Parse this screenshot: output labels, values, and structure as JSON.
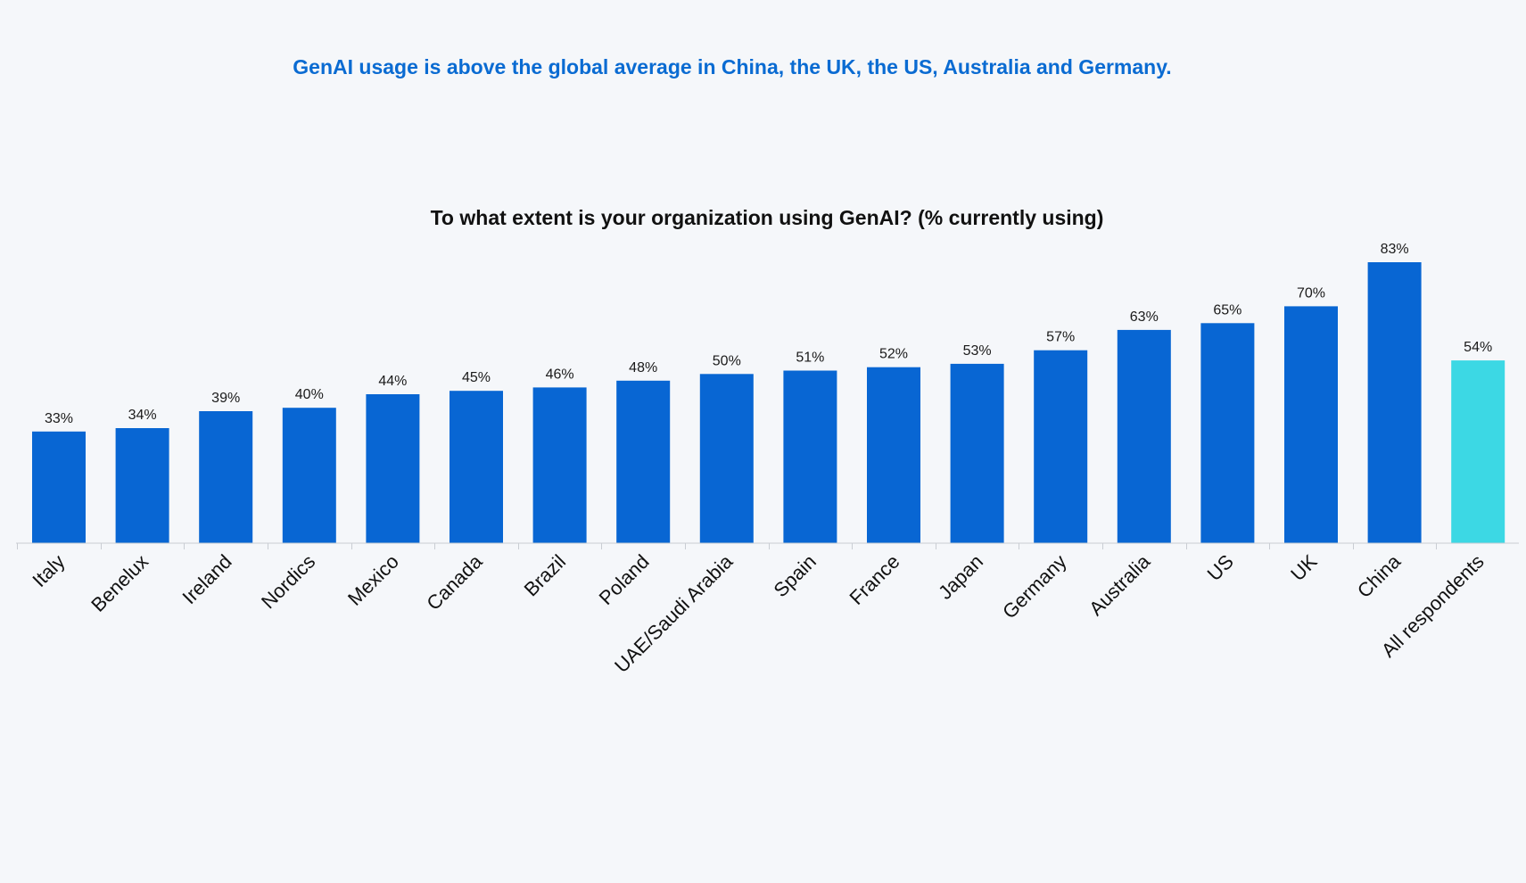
{
  "headline": "GenAI usage is above the global average in China, the UK, the US, Australia and Germany.",
  "colors": {
    "headline": "#0a6bd2",
    "bar": "#0866d3",
    "highlight_bar": "#3cd8e4",
    "axis": "#c9cdd3",
    "background": "#f5f7fa"
  },
  "chart_data": {
    "type": "bar",
    "title": "To what extent is your organization using GenAI? (% currently using)",
    "categories": [
      "Italy",
      "Benelux",
      "Ireland",
      "Nordics",
      "Mexico",
      "Canada",
      "Brazil",
      "Poland",
      "UAE/Saudi Arabia",
      "Spain",
      "France",
      "Japan",
      "Germany",
      "Australia",
      "US",
      "UK",
      "China",
      "All respondents"
    ],
    "values": [
      33,
      34,
      39,
      40,
      44,
      45,
      46,
      48,
      50,
      51,
      52,
      53,
      57,
      63,
      65,
      70,
      83,
      54
    ],
    "value_labels": [
      "33%",
      "34%",
      "39%",
      "40%",
      "44%",
      "45%",
      "46%",
      "48%",
      "50%",
      "51%",
      "52%",
      "53%",
      "57%",
      "63%",
      "65%",
      "70%",
      "83%",
      "54%"
    ],
    "highlight_category": "All respondents",
    "unit": "%",
    "xlabel": "",
    "ylabel": "",
    "ylim": [
      0,
      100
    ],
    "grid": false,
    "legend": "none"
  }
}
